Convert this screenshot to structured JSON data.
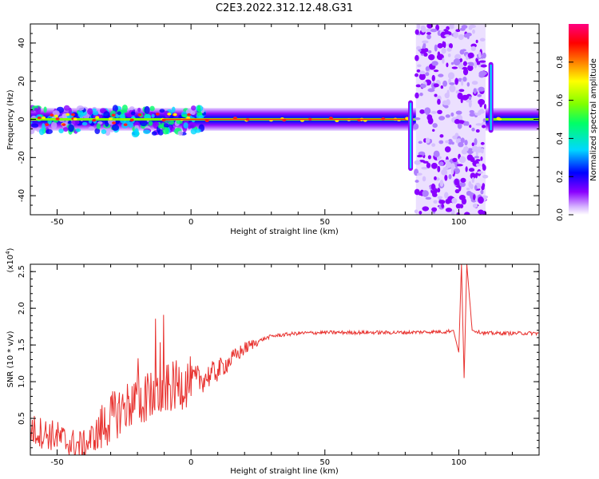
{
  "figure": {
    "title": "C2E3.2022.312.12.48.G31"
  },
  "chart_data": [
    {
      "type": "heatmap",
      "name": "spectrogram",
      "title": "C2E3.2022.312.12.48.G31",
      "xlabel": "Height of straight line (km)",
      "ylabel": "Frequency (Hz)",
      "xlim": [
        -60,
        130
      ],
      "ylim": [
        -50,
        50
      ],
      "xticks": [
        -50,
        0,
        50,
        100
      ],
      "yticks": [
        -40,
        -20,
        0,
        20,
        40
      ],
      "colorbar": {
        "label": "Normalized spectral amplitude",
        "range": [
          0,
          1
        ],
        "ticks": [
          "0.0",
          "0.2",
          "0.4",
          "0.6",
          "0.8"
        ],
        "colormap": "rainbow (violet-blue-cyan-green-yellow-red-magenta)"
      },
      "features": [
        {
          "description": "narrow tone near 0 Hz across heights",
          "x_range": [
            -60,
            130
          ],
          "frequency_hz": 0
        },
        {
          "description": "broadband scattered region",
          "x_range": [
            84,
            110
          ],
          "frequency_hz_range": [
            -50,
            50
          ]
        },
        {
          "description": "frequency excursion",
          "x": 82,
          "frequency_hz_range": [
            -27,
            10
          ]
        },
        {
          "description": "frequency excursion",
          "x": 112,
          "frequency_hz_range": [
            -7,
            30
          ]
        }
      ]
    },
    {
      "type": "line",
      "name": "snr",
      "xlabel": "Height of straight line (km)",
      "ylabel": "SNR (10 * v/v)",
      "y_multiplier": "(x10^4)",
      "y_multiplier_base": "(x10",
      "y_multiplier_exp": "4",
      "y_multiplier_close": ")",
      "xlim": [
        -60,
        130
      ],
      "ylim": [
        0,
        2.6
      ],
      "xticks": [
        -50,
        0,
        50,
        100
      ],
      "yticks": [
        0.5,
        1.0,
        1.5,
        2.0,
        2.5
      ],
      "ytick_labels": [
        "0.5",
        "1.0",
        "1.5",
        "2.0",
        "2.5"
      ],
      "series": [
        {
          "color": "#e8322f",
          "x": [
            -60,
            -55,
            -50,
            -45,
            -40,
            -35,
            -30,
            -25,
            -20,
            -15,
            -10,
            -5,
            0,
            5,
            10,
            15,
            20,
            25,
            30,
            40,
            50,
            60,
            70,
            80,
            90,
            95,
            98,
            100,
            101,
            102,
            103,
            105,
            110,
            120,
            130
          ],
          "y": [
            0.35,
            0.3,
            0.25,
            0.15,
            0.12,
            0.3,
            0.5,
            0.65,
            0.75,
            0.8,
            0.88,
            0.95,
            1.0,
            1.05,
            1.15,
            1.3,
            1.45,
            1.55,
            1.62,
            1.66,
            1.67,
            1.67,
            1.67,
            1.67,
            1.68,
            1.68,
            1.7,
            1.4,
            2.6,
            1.05,
            2.6,
            1.7,
            1.66,
            1.66,
            1.66
          ]
        }
      ]
    }
  ]
}
